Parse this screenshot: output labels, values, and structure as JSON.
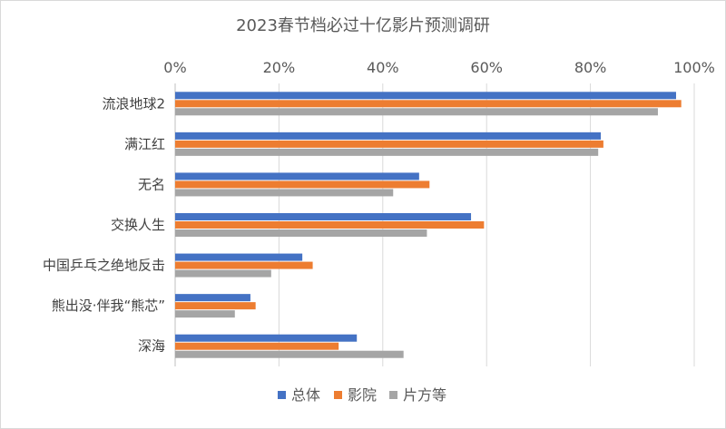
{
  "chart_data": {
    "type": "bar",
    "orientation": "horizontal",
    "title": "2023春节档必过十亿影片预测调研",
    "categories": [
      "流浪地球2",
      "满江红",
      "无名",
      "交换人生",
      "中国乒乓之绝地反击",
      "熊出没·伴我“熊芯”",
      "深海"
    ],
    "series": [
      {
        "name": "总体",
        "color": "#4472c4",
        "values": [
          96.5,
          82,
          47,
          57,
          24.5,
          14.5,
          35
        ]
      },
      {
        "name": "影院",
        "color": "#ed7d31",
        "values": [
          97.5,
          82.5,
          49,
          59.5,
          26.5,
          15.5,
          31.5
        ]
      },
      {
        "name": "片方等",
        "color": "#a5a5a5",
        "values": [
          93,
          81.5,
          42,
          48.5,
          18.5,
          11.5,
          44
        ]
      }
    ],
    "xlim": [
      0,
      100
    ],
    "x_ticks": [
      "0%",
      "20%",
      "40%",
      "60%",
      "80%",
      "100%"
    ],
    "x_axis_position": "top",
    "grid": true,
    "legend": "bottom"
  }
}
